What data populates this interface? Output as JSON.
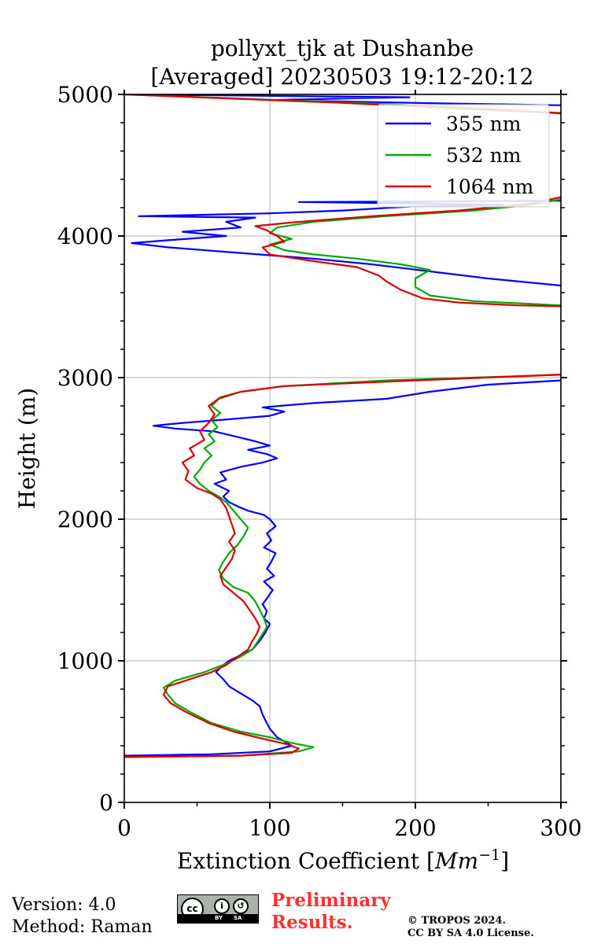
{
  "chart_data": {
    "type": "line",
    "title": "pollyxt_tjk at Dushanbe",
    "subtitle": "[Averaged] 20230503 19:12-20:12",
    "xlabel": "Extinction Coefficient [Mm⁻¹]",
    "xlabel_base": "Extinction Coefficient [",
    "xlabel_unit": "Mm",
    "xlabel_exp": "−1",
    "xlabel_close": "]",
    "ylabel": "Height (m)",
    "xlim": [
      0,
      300
    ],
    "ylim": [
      0,
      5000
    ],
    "xticks": [
      0,
      100,
      200,
      300
    ],
    "xtick_labels": [
      "0",
      "100",
      "200",
      "300"
    ],
    "yticks": [
      0,
      1000,
      2000,
      3000,
      4000,
      5000
    ],
    "ytick_labels": [
      "0",
      "1000",
      "2000",
      "3000",
      "4000",
      "5000"
    ],
    "grid": true,
    "legend_position": "top-right",
    "series": [
      {
        "name": "355 nm",
        "color": "#0000ff",
        "points": [
          [
            0,
            330
          ],
          [
            60,
            340
          ],
          [
            100,
            360
          ],
          [
            115,
            400
          ],
          [
            105,
            460
          ],
          [
            100,
            520
          ],
          [
            97,
            580
          ],
          [
            95,
            620
          ],
          [
            93,
            680
          ],
          [
            88,
            720
          ],
          [
            80,
            770
          ],
          [
            72,
            820
          ],
          [
            68,
            870
          ],
          [
            63,
            920
          ],
          [
            68,
            970
          ],
          [
            72,
            1000
          ],
          [
            80,
            1040
          ],
          [
            88,
            1080
          ],
          [
            93,
            1140
          ],
          [
            97,
            1200
          ],
          [
            100,
            1260
          ],
          [
            96,
            1300
          ],
          [
            98,
            1350
          ],
          [
            95,
            1400
          ],
          [
            98,
            1440
          ],
          [
            102,
            1500
          ],
          [
            96,
            1560
          ],
          [
            103,
            1600
          ],
          [
            98,
            1650
          ],
          [
            101,
            1700
          ],
          [
            104,
            1760
          ],
          [
            96,
            1800
          ],
          [
            101,
            1850
          ],
          [
            98,
            1900
          ],
          [
            104,
            1950
          ],
          [
            100,
            2000
          ],
          [
            96,
            2030
          ],
          [
            85,
            2060
          ],
          [
            78,
            2090
          ],
          [
            72,
            2120
          ],
          [
            68,
            2160
          ],
          [
            72,
            2200
          ],
          [
            62,
            2250
          ],
          [
            70,
            2280
          ],
          [
            66,
            2330
          ],
          [
            80,
            2370
          ],
          [
            95,
            2400
          ],
          [
            105,
            2430
          ],
          [
            98,
            2460
          ],
          [
            85,
            2490
          ],
          [
            100,
            2520
          ],
          [
            90,
            2550
          ],
          [
            78,
            2580
          ],
          [
            62,
            2620
          ],
          [
            35,
            2640
          ],
          [
            20,
            2660
          ],
          [
            40,
            2680
          ],
          [
            65,
            2700
          ],
          [
            100,
            2730
          ],
          [
            110,
            2760
          ],
          [
            95,
            2790
          ],
          [
            130,
            2820
          ],
          [
            180,
            2850
          ],
          [
            210,
            2900
          ],
          [
            250,
            2950
          ],
          [
            300,
            2980
          ],
          [
            320,
            3000
          ]
        ],
        "points_upper": [
          [
            320,
            3500
          ],
          [
            300,
            3650
          ],
          [
            250,
            3700
          ],
          [
            210,
            3750
          ],
          [
            170,
            3800
          ],
          [
            130,
            3840
          ],
          [
            80,
            3880
          ],
          [
            30,
            3920
          ],
          [
            5,
            3950
          ],
          [
            30,
            3970
          ],
          [
            70,
            4000
          ],
          [
            40,
            4030
          ],
          [
            80,
            4060
          ],
          [
            70,
            4100
          ],
          [
            90,
            4130
          ],
          [
            10,
            4140
          ],
          [
            100,
            4160
          ],
          [
            150,
            4180
          ],
          [
            200,
            4210
          ],
          [
            260,
            4220
          ],
          [
            200,
            4230
          ],
          [
            120,
            4240
          ],
          [
            320,
            4250
          ],
          [
            320,
            4920
          ],
          [
            200,
            4940
          ],
          [
            100,
            4960
          ],
          [
            196,
            4980
          ],
          [
            0,
            5000
          ]
        ]
      },
      {
        "name": "532 nm",
        "color": "#00aa00",
        "points": [
          [
            0,
            320
          ],
          [
            80,
            330
          ],
          [
            120,
            360
          ],
          [
            130,
            390
          ],
          [
            115,
            420
          ],
          [
            100,
            460
          ],
          [
            80,
            500
          ],
          [
            60,
            560
          ],
          [
            45,
            640
          ],
          [
            35,
            700
          ],
          [
            30,
            760
          ],
          [
            27,
            810
          ],
          [
            35,
            860
          ],
          [
            55,
            920
          ],
          [
            70,
            980
          ],
          [
            80,
            1030
          ],
          [
            88,
            1080
          ],
          [
            92,
            1140
          ],
          [
            95,
            1190
          ],
          [
            98,
            1240
          ],
          [
            96,
            1300
          ],
          [
            93,
            1360
          ],
          [
            90,
            1420
          ],
          [
            85,
            1480
          ],
          [
            75,
            1520
          ],
          [
            68,
            1580
          ],
          [
            65,
            1640
          ],
          [
            68,
            1700
          ],
          [
            72,
            1760
          ],
          [
            78,
            1820
          ],
          [
            82,
            1880
          ],
          [
            85,
            1940
          ],
          [
            80,
            2000
          ],
          [
            75,
            2060
          ],
          [
            70,
            2120
          ],
          [
            65,
            2160
          ],
          [
            58,
            2200
          ],
          [
            52,
            2250
          ],
          [
            48,
            2300
          ],
          [
            52,
            2350
          ],
          [
            55,
            2400
          ],
          [
            60,
            2450
          ],
          [
            55,
            2500
          ],
          [
            62,
            2550
          ],
          [
            58,
            2600
          ],
          [
            64,
            2650
          ],
          [
            60,
            2700
          ],
          [
            66,
            2750
          ],
          [
            60,
            2800
          ],
          [
            65,
            2850
          ],
          [
            80,
            2900
          ],
          [
            110,
            2940
          ],
          [
            180,
            2980
          ],
          [
            300,
            3020
          ],
          [
            320,
            3030
          ]
        ],
        "points_upper": [
          [
            320,
            3500
          ],
          [
            280,
            3520
          ],
          [
            240,
            3540
          ],
          [
            210,
            3580
          ],
          [
            200,
            3640
          ],
          [
            200,
            3700
          ],
          [
            210,
            3760
          ],
          [
            190,
            3800
          ],
          [
            160,
            3840
          ],
          [
            130,
            3870
          ],
          [
            110,
            3900
          ],
          [
            100,
            3940
          ],
          [
            115,
            3980
          ],
          [
            100,
            4020
          ],
          [
            105,
            4060
          ],
          [
            130,
            4100
          ],
          [
            180,
            4140
          ],
          [
            240,
            4180
          ],
          [
            280,
            4220
          ],
          [
            320,
            4300
          ],
          [
            320,
            4850
          ],
          [
            250,
            4900
          ],
          [
            160,
            4940
          ],
          [
            0,
            5000
          ]
        ]
      },
      {
        "name": "1064 nm",
        "color": "#dd0000",
        "points": [
          [
            0,
            320
          ],
          [
            80,
            330
          ],
          [
            115,
            350
          ],
          [
            120,
            380
          ],
          [
            112,
            410
          ],
          [
            95,
            450
          ],
          [
            75,
            500
          ],
          [
            58,
            560
          ],
          [
            42,
            640
          ],
          [
            32,
            700
          ],
          [
            27,
            760
          ],
          [
            30,
            820
          ],
          [
            45,
            870
          ],
          [
            60,
            920
          ],
          [
            70,
            970
          ],
          [
            78,
            1030
          ],
          [
            85,
            1080
          ],
          [
            88,
            1140
          ],
          [
            91,
            1190
          ],
          [
            93,
            1240
          ],
          [
            90,
            1300
          ],
          [
            86,
            1360
          ],
          [
            82,
            1420
          ],
          [
            75,
            1480
          ],
          [
            68,
            1540
          ],
          [
            66,
            1600
          ],
          [
            70,
            1660
          ],
          [
            74,
            1720
          ],
          [
            76,
            1780
          ],
          [
            72,
            1840
          ],
          [
            76,
            1900
          ],
          [
            74,
            1960
          ],
          [
            72,
            2020
          ],
          [
            70,
            2080
          ],
          [
            66,
            2140
          ],
          [
            60,
            2180
          ],
          [
            50,
            2220
          ],
          [
            42,
            2280
          ],
          [
            44,
            2340
          ],
          [
            40,
            2400
          ],
          [
            48,
            2450
          ],
          [
            45,
            2500
          ],
          [
            55,
            2560
          ],
          [
            52,
            2620
          ],
          [
            58,
            2680
          ],
          [
            62,
            2740
          ],
          [
            58,
            2800
          ],
          [
            66,
            2860
          ],
          [
            80,
            2900
          ],
          [
            110,
            2940
          ],
          [
            200,
            2980
          ],
          [
            320,
            3030
          ]
        ],
        "points_upper": [
          [
            320,
            3500
          ],
          [
            270,
            3510
          ],
          [
            230,
            3530
          ],
          [
            205,
            3560
          ],
          [
            190,
            3620
          ],
          [
            180,
            3680
          ],
          [
            175,
            3720
          ],
          [
            160,
            3780
          ],
          [
            125,
            3830
          ],
          [
            100,
            3870
          ],
          [
            95,
            3920
          ],
          [
            110,
            3960
          ],
          [
            105,
            4000
          ],
          [
            98,
            4040
          ],
          [
            90,
            4070
          ],
          [
            120,
            4100
          ],
          [
            170,
            4140
          ],
          [
            230,
            4180
          ],
          [
            280,
            4230
          ],
          [
            320,
            4320
          ],
          [
            320,
            4860
          ],
          [
            230,
            4900
          ],
          [
            150,
            4940
          ],
          [
            0,
            5000
          ]
        ]
      }
    ]
  },
  "footer": {
    "version": "Version: 4.0",
    "method": "Method: Raman",
    "preliminary_line1": "Preliminary",
    "preliminary_line2": "Results.",
    "copyright_line1": "© TROPOS 2024.",
    "copyright_line2": "CC BY SA 4.0 License.",
    "cc_badge": {
      "cc": "cc",
      "by_label": "BY",
      "sa_label": "SA",
      "icon": "creative-commons-by-sa-icon"
    }
  }
}
